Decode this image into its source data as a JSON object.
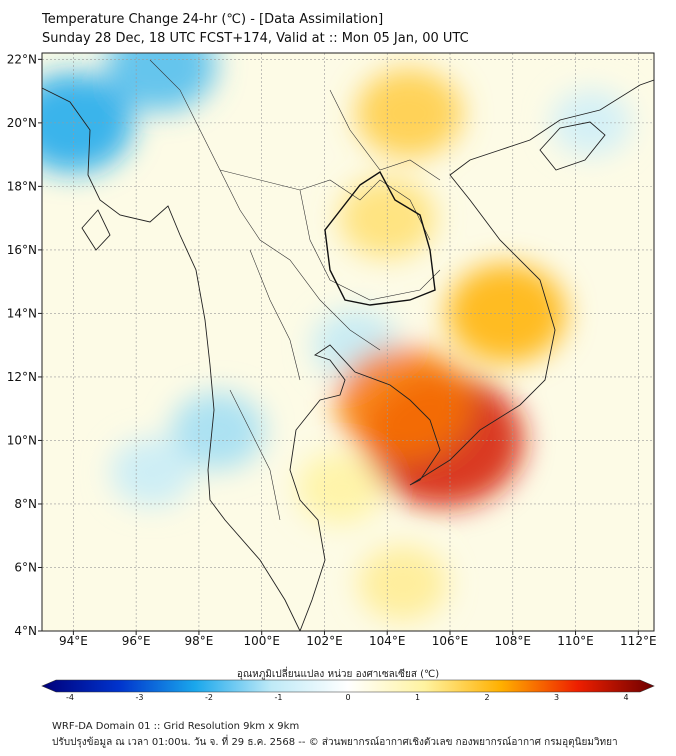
{
  "title": {
    "line1": "Temperature Change 24-hr (℃) - [Data Assimilation]",
    "line2": "Sunday 28 Dec, 18 UTC FCST+174, Valid at :: Mon 05 Jan, 00 UTC"
  },
  "map": {
    "variable": "24-hr temperature change",
    "units": "℃",
    "lon_range": [
      93,
      112.5
    ],
    "lat_range": [
      4,
      22.2
    ],
    "lat_ticks": [
      {
        "value": 22,
        "label": "22°N"
      },
      {
        "value": 20,
        "label": "20°N"
      },
      {
        "value": 18,
        "label": "18°N"
      },
      {
        "value": 16,
        "label": "16°N"
      },
      {
        "value": 14,
        "label": "14°N"
      },
      {
        "value": 12,
        "label": "12°N"
      },
      {
        "value": 10,
        "label": "10°N"
      },
      {
        "value": 8,
        "label": "8°N"
      },
      {
        "value": 6,
        "label": "6°N"
      },
      {
        "value": 4,
        "label": "4°N"
      }
    ],
    "lon_ticks": [
      {
        "value": 94,
        "label": "94°E"
      },
      {
        "value": 96,
        "label": "96°E"
      },
      {
        "value": 98,
        "label": "98°E"
      },
      {
        "value": 100,
        "label": "100°E"
      },
      {
        "value": 102,
        "label": "102°E"
      },
      {
        "value": 104,
        "label": "104°E"
      },
      {
        "value": 106,
        "label": "106°E"
      },
      {
        "value": 108,
        "label": "108°E"
      },
      {
        "value": 110,
        "label": "110°E"
      },
      {
        "value": 112,
        "label": "112°E"
      }
    ],
    "field_features": [
      {
        "name": "cold-spot-bay-of-bengal",
        "lon": 94.0,
        "lat": 20.0,
        "value": -2.0
      },
      {
        "name": "cold-spot-myanmar-north",
        "lon": 96.8,
        "lat": 21.8,
        "value": -1.7
      },
      {
        "name": "cool-andaman-coast",
        "lon": 98.6,
        "lat": 10.3,
        "value": -1.2
      },
      {
        "name": "cool-gulf-of-thailand",
        "lon": 103.0,
        "lat": 13.0,
        "value": -1.0
      },
      {
        "name": "cool-south-china-sea",
        "lon": 110.5,
        "lat": 20.0,
        "value": -0.8
      },
      {
        "name": "cool-andaman-sea",
        "lon": 96.5,
        "lat": 9.0,
        "value": -0.9
      },
      {
        "name": "warm-laos-north",
        "lon": 104.7,
        "lat": 20.3,
        "value": 1.6
      },
      {
        "name": "warm-isan",
        "lon": 104.0,
        "lat": 17.0,
        "value": 1.3
      },
      {
        "name": "warm-vietnam-central",
        "lon": 107.8,
        "lat": 14.0,
        "value": 2.0
      },
      {
        "name": "hot-mekong-delta",
        "lon": 105.8,
        "lat": 10.0,
        "value": 3.2
      },
      {
        "name": "warm-cambodia",
        "lon": 104.5,
        "lat": 11.2,
        "value": 2.4
      },
      {
        "name": "warm-south-gulf",
        "lon": 102.5,
        "lat": 8.5,
        "value": 1.0
      },
      {
        "name": "warm-south",
        "lon": 104.5,
        "lat": 5.5,
        "value": 1.1
      }
    ]
  },
  "colorbar": {
    "title": "อุณหภูมิเปลี่ยนแปลง หน่วย องศาเซลเซียส (℃)",
    "min": -4,
    "max": 4,
    "ticks": [
      {
        "value": -4,
        "label": "-4"
      },
      {
        "value": -3,
        "label": "-3"
      },
      {
        "value": -2,
        "label": "-2"
      },
      {
        "value": -1,
        "label": "-1"
      },
      {
        "value": 0,
        "label": "0"
      },
      {
        "value": 1,
        "label": "1"
      },
      {
        "value": 2,
        "label": "2"
      },
      {
        "value": 3,
        "label": "3"
      },
      {
        "value": 4,
        "label": "4"
      }
    ],
    "colors": [
      "#00007a",
      "#0033cc",
      "#1aa7ec",
      "#bfeaf7",
      "#ffffff",
      "#fff3a0",
      "#ffb000",
      "#ee1f00",
      "#6e0000"
    ]
  },
  "footer": {
    "line1": "WRF-DA Domain 01 :: Grid Resolution 9km x 9km",
    "line2": "ปรับปรุงข้อมูล ณ เวลา 01:00น. วัน จ. ที่ 29 ธ.ค. 2568 -- © ส่วนพยากรณ์อากาศเชิงตัวเลข กองพยากรณ์อากาศ กรมอุตุนิยมวิทยา"
  }
}
